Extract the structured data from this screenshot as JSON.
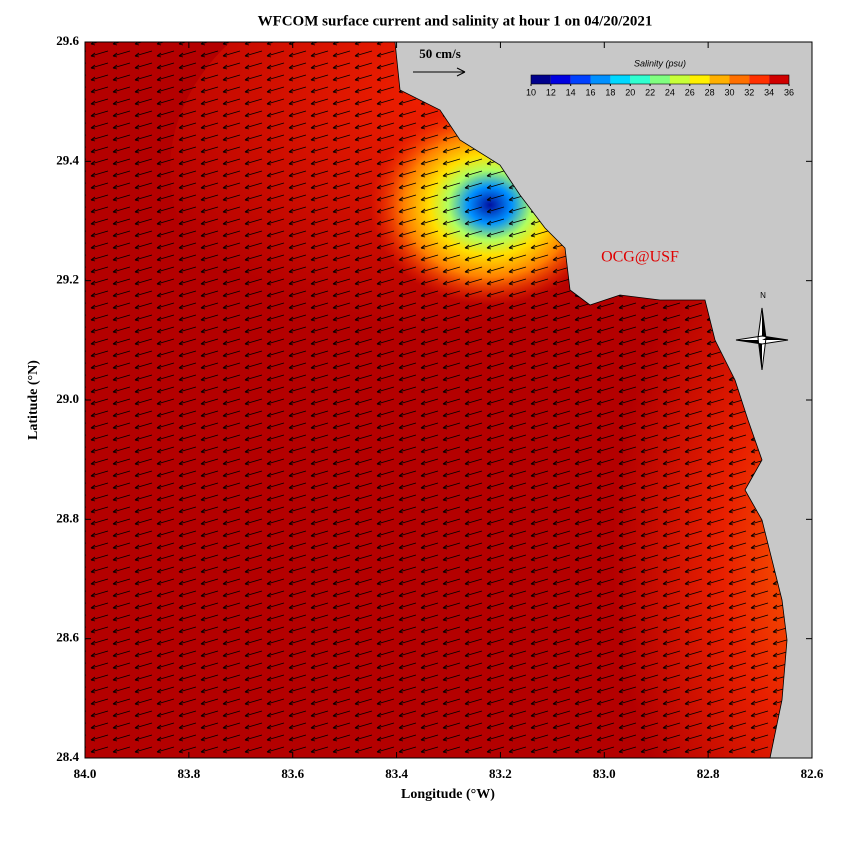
{
  "chart_data": {
    "type": "map",
    "title": "WFCOM surface current and salinity at hour 1 on 04/20/2021",
    "xlabel": "Longitude (°W)",
    "ylabel": "Latitude (°N)",
    "xlim": [
      84,
      82.6
    ],
    "xticks": [
      {
        "value": 84,
        "label": "84.0"
      },
      83.8,
      83.6,
      83.4,
      83.2,
      {
        "value": 83,
        "label": "83.0"
      },
      82.8,
      82.6
    ],
    "ylim": [
      28.4,
      29.6
    ],
    "yticks": [
      28.4,
      28.6,
      28.8,
      {
        "value": 29,
        "label": "29.0"
      },
      29.2,
      29.4,
      29.6
    ],
    "vector_scale_label": "50 cm/s",
    "colorbar": {
      "title": "Salinity (psu)",
      "lim": [
        10,
        36
      ],
      "ticks": [
        10,
        12,
        14,
        16,
        18,
        20,
        22,
        24,
        26,
        28,
        30,
        32,
        34,
        36
      ],
      "colors": [
        "#00008c",
        "#0000e0",
        "#0040ff",
        "#0090ff",
        "#00d8ff",
        "#30ffd0",
        "#80ff80",
        "#c8ff38",
        "#fff000",
        "#ffb000",
        "#ff7000",
        "#ff3000",
        "#d00000"
      ]
    },
    "annotation": "OCG@USF",
    "compass_label": "N"
  }
}
